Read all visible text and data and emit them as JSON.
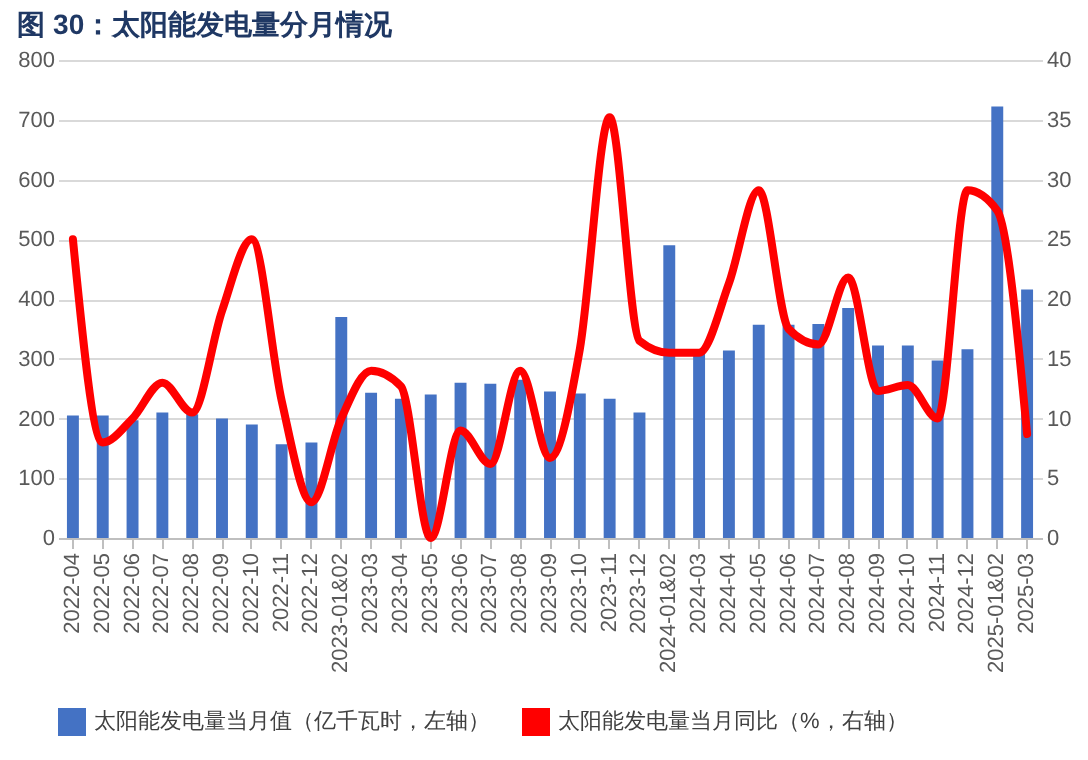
{
  "chart_data": {
    "type": "bar",
    "title": "图 30：太阳能发电量分月情况",
    "categories": [
      "2022-04",
      "2022-05",
      "2022-06",
      "2022-07",
      "2022-08",
      "2022-09",
      "2022-10",
      "2022-11",
      "2022-12",
      "2023-01&02",
      "2023-03",
      "2023-04",
      "2023-05",
      "2023-06",
      "2023-07",
      "2023-08",
      "2023-09",
      "2023-10",
      "2023-11",
      "2023-12",
      "2024-01&02",
      "2024-03",
      "2024-04",
      "2024-05",
      "2024-06",
      "2024-07",
      "2024-08",
      "2024-09",
      "2024-10",
      "2024-11",
      "2024-12",
      "2025-01&02",
      "2025-03"
    ],
    "series": [
      {
        "name": "太阳能发电量当月值（亿千瓦时，左轴）",
        "axis": "y",
        "color": "#4472c4",
        "values": [
          205,
          205,
          197,
          210,
          207,
          200,
          190,
          157,
          160,
          370,
          243,
          233,
          240,
          260,
          258,
          265,
          245,
          242,
          233,
          210,
          490,
          310,
          314,
          357,
          357,
          358,
          385,
          322,
          322,
          297,
          316,
          722,
          416
        ]
      },
      {
        "name": "太阳能发电量当月同比（%，右轴）",
        "type": "line",
        "axis": "y2",
        "color": "#ff0000",
        "values": [
          25,
          8,
          10,
          13,
          10.5,
          19,
          25,
          11.5,
          3,
          10,
          14,
          12.7,
          0,
          9,
          6.2,
          14,
          6.7,
          15.8,
          35.2,
          16.5,
          15.5,
          15.5,
          21.3,
          29.1,
          17.5,
          16.2,
          21.8,
          12.3,
          12.8,
          10,
          29.1,
          27.4,
          8.7
        ]
      }
    ],
    "ylim": [
      0,
      800
    ],
    "yticks": [
      0,
      100,
      200,
      300,
      400,
      500,
      600,
      700,
      800
    ],
    "y2lim": [
      0,
      40
    ],
    "y2ticks": [
      0,
      5,
      10,
      15,
      20,
      25,
      30,
      35,
      40
    ],
    "grid": "y",
    "legend": "bottom"
  }
}
